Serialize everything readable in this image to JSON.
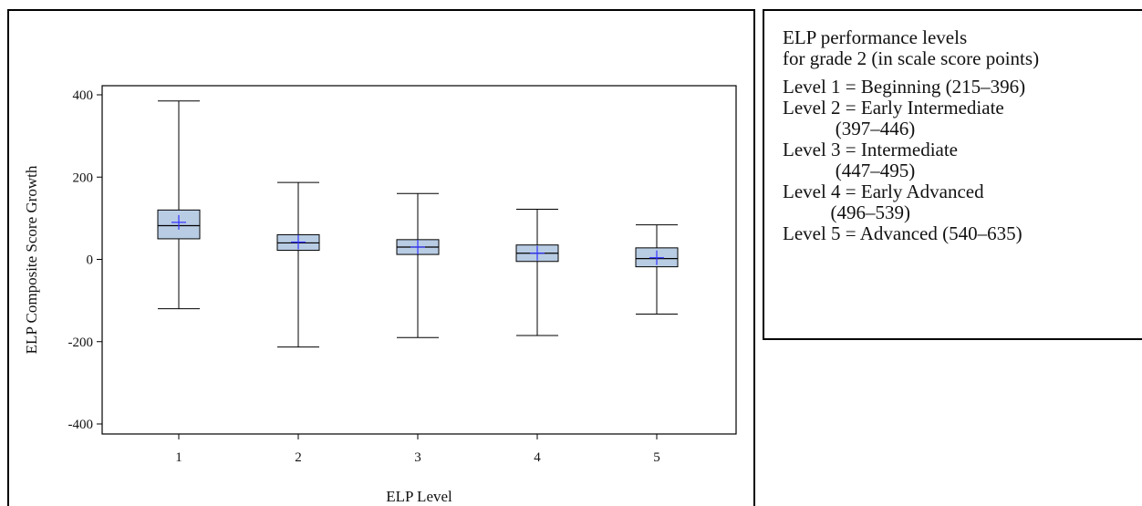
{
  "chart_data": {
    "type": "boxplot",
    "xlabel": "ELP Level",
    "ylabel": "ELP Composite Score Growth",
    "ylim": [
      -400,
      400
    ],
    "yticks": [
      -400,
      -200,
      0,
      200,
      400
    ],
    "categories": [
      "1",
      "2",
      "3",
      "4",
      "5"
    ],
    "boxes": [
      {
        "category": "1",
        "min": -120,
        "q1": 50,
        "median": 82,
        "q3": 120,
        "max": 385,
        "mean": 90
      },
      {
        "category": "2",
        "min": -213,
        "q1": 22,
        "median": 40,
        "q3": 60,
        "max": 187,
        "mean": 42
      },
      {
        "category": "3",
        "min": -190,
        "q1": 12,
        "median": 30,
        "q3": 48,
        "max": 160,
        "mean": 30
      },
      {
        "category": "4",
        "min": -185,
        "q1": -5,
        "median": 15,
        "q3": 35,
        "max": 122,
        "mean": 15
      },
      {
        "category": "5",
        "min": -133,
        "q1": -18,
        "median": 2,
        "q3": 28,
        "max": 84,
        "mean": 4
      }
    ],
    "colors": {
      "box_fill": "#b8cce4",
      "box_stroke": "#000000",
      "mean_marker": "#3333ff"
    }
  },
  "legend": {
    "heading": [
      "ELP performance levels",
      "for grade 2 (in scale score points)"
    ],
    "lines": [
      "Level 1 = Beginning (215–396)",
      "Level 2 = Early Intermediate",
      "           (397–446)",
      "Level 3 = Intermediate",
      "           (447–495)",
      "Level 4 = Early Advanced",
      "          (496–539)",
      "Level 5 = Advanced (540–635)"
    ]
  }
}
